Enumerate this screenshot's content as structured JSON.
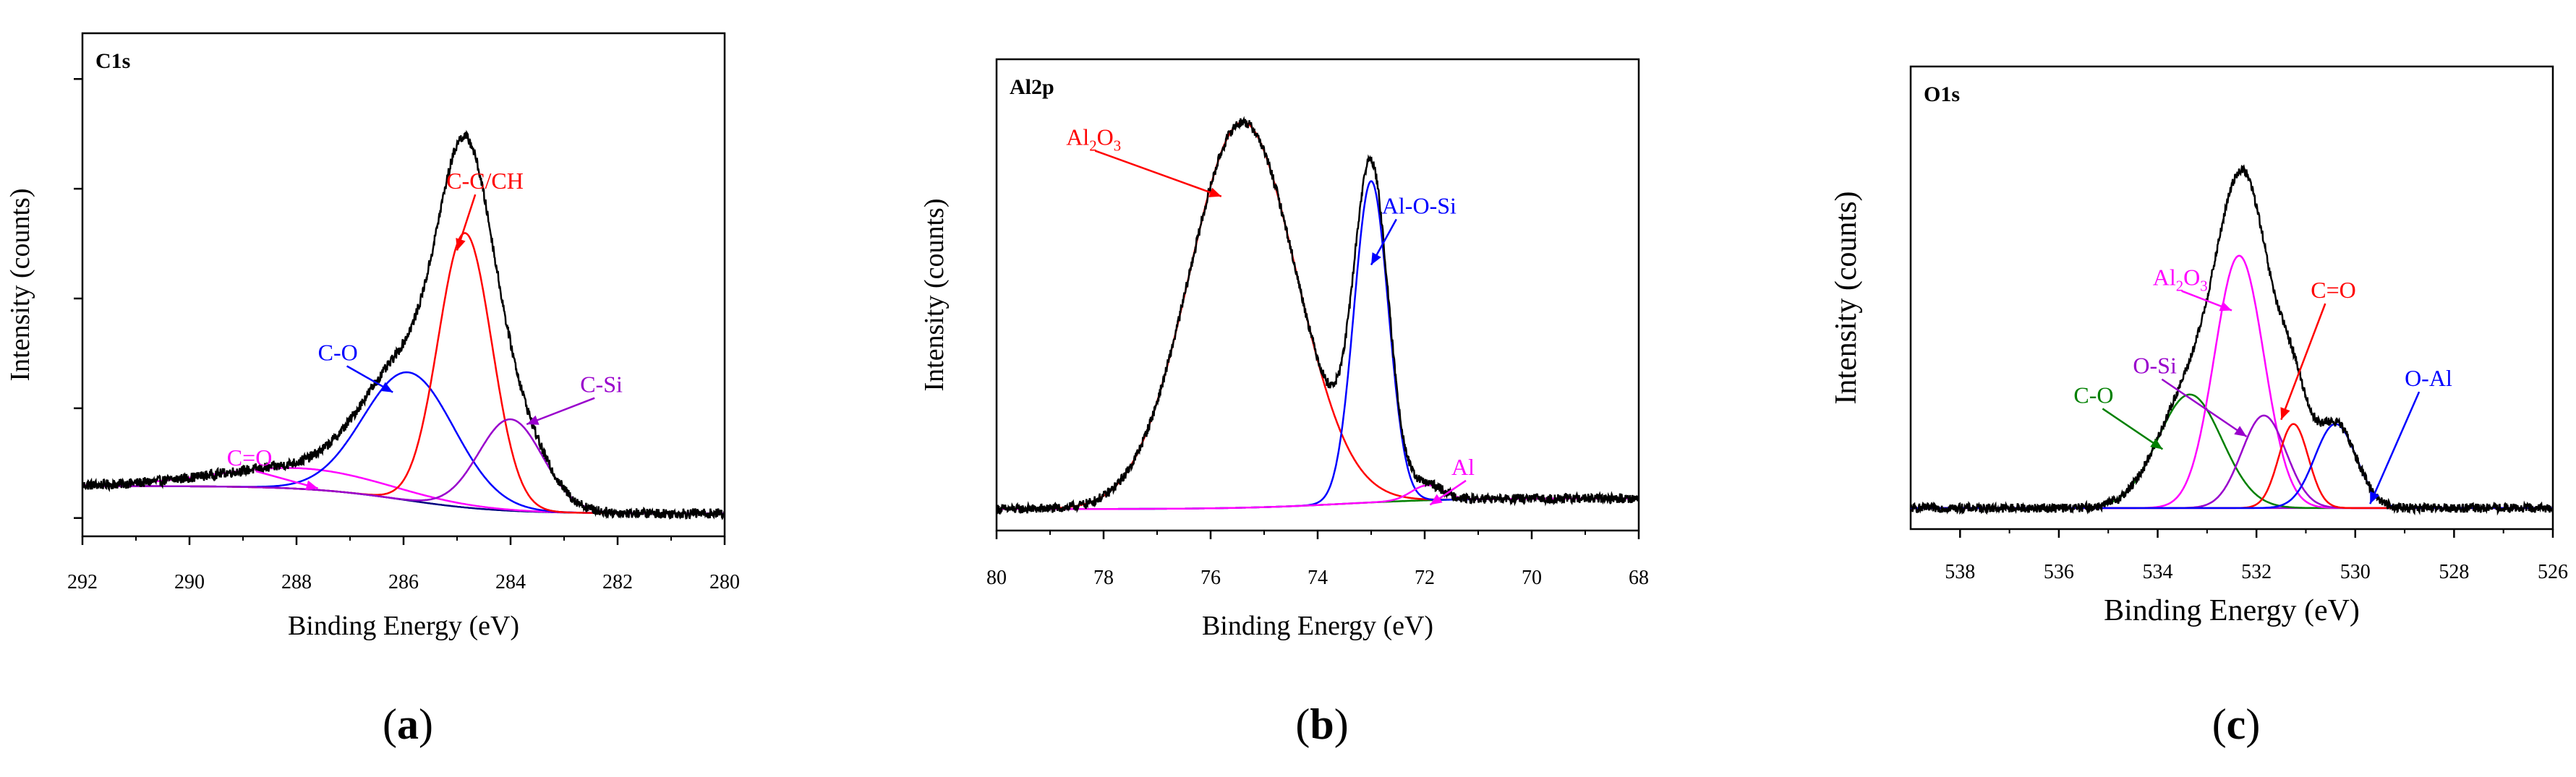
{
  "chart_data": [
    {
      "id": "a",
      "type": "line",
      "panel_label": "(a)",
      "panel_letter": "a",
      "title": "C1s",
      "xlabel": "Binding Energy (eV)",
      "ylabel": "Intensity (counts)",
      "xlim": [
        292,
        280
      ],
      "ylim": [
        0,
        1.1
      ],
      "xticks": [
        292,
        290,
        288,
        286,
        284,
        282,
        280
      ],
      "xtick_labels": [
        "292",
        "290",
        "288",
        "286",
        "284",
        "282",
        "280"
      ],
      "background": {
        "c0": 0.06,
        "c1": 0.0,
        "center": 286.0,
        "width": 0.9
      },
      "peaks": [
        {
          "name": "C=O",
          "label": "C=O",
          "center": 287.9,
          "height": 0.045,
          "width": 1.6,
          "color": "#ff00ff"
        },
        {
          "name": "C-O",
          "label": "C-O",
          "center": 285.9,
          "height": 0.28,
          "width": 0.85,
          "color": "#0000ff"
        },
        {
          "name": "C-C/CH",
          "label": "C-C/CH",
          "center": 284.85,
          "height": 0.6,
          "width": 0.5,
          "color": "#ff0000"
        },
        {
          "name": "C-Si",
          "label": "C-Si",
          "center": 284.0,
          "height": 0.2,
          "width": 0.6,
          "color": "#9900cc"
        }
      ],
      "annotations": [
        {
          "text": "C=O",
          "color": "#ff00ff",
          "label_xy": [
            289.3,
            0.155
          ],
          "arrow_to": [
            287.6,
            0.105
          ]
        },
        {
          "text": "C-O",
          "color": "#0000ff",
          "label_xy": [
            287.6,
            0.385
          ],
          "arrow_to": [
            286.2,
            0.315
          ]
        },
        {
          "text": "C-C/CH",
          "color": "#ff0000",
          "label_xy": [
            285.2,
            0.76
          ],
          "arrow_to": [
            285.0,
            0.625
          ]
        },
        {
          "text": "C-Si",
          "color": "#9900cc",
          "label_xy": [
            282.7,
            0.315
          ],
          "arrow_to": [
            283.7,
            0.245
          ]
        }
      ]
    },
    {
      "id": "b",
      "type": "line",
      "panel_label": "(b)",
      "panel_letter": "b",
      "title": "Al2p",
      "xlabel": "Binding Energy (eV)",
      "ylabel": "Intensity (counts)",
      "xlim": [
        80,
        68
      ],
      "ylim": [
        0,
        1.1
      ],
      "xticks": [
        80,
        78,
        76,
        74,
        72,
        70,
        68
      ],
      "xtick_labels": [
        "80",
        "78",
        "76",
        "74",
        "72",
        "70",
        "68"
      ],
      "background": {
        "c0": 0.0,
        "c1": 0.025,
        "center": 73.5,
        "width": 1.0
      },
      "peaks": [
        {
          "name": "Al2O3",
          "label": "Al2O3",
          "center": 75.4,
          "height": 0.9,
          "width": 1.0,
          "color": "#ff0000"
        },
        {
          "name": "Al-O-Si",
          "label": "Al-O-Si",
          "center": 73.0,
          "height": 0.75,
          "width": 0.32,
          "color": "#0000ff"
        },
        {
          "name": "Al",
          "label": "Al",
          "center": 71.95,
          "height": 0.035,
          "width": 0.3,
          "color": "#ff00ff"
        }
      ],
      "annotations": [
        {
          "text": "Al",
          "sub": "2",
          "text2": "O",
          "sub2": "3",
          "color": "#ff0000",
          "label_xy": [
            78.7,
            0.9
          ],
          "arrow_to": [
            75.8,
            0.78
          ]
        },
        {
          "text": "Al-O-Si",
          "color": "#0000ff",
          "label_xy": [
            72.8,
            0.74
          ],
          "arrow_to": [
            73.0,
            0.62
          ]
        },
        {
          "text": "Al",
          "color": "#ff00ff",
          "label_xy": [
            71.5,
            0.13
          ],
          "arrow_to": [
            71.9,
            0.06
          ]
        }
      ]
    },
    {
      "id": "c",
      "type": "line",
      "panel_label": "(c)",
      "panel_letter": "c",
      "title": "O1s",
      "xlabel": "Binding Energy (eV)",
      "ylabel": "Intensity (counts)",
      "xlim": [
        539,
        526
      ],
      "ylim": [
        0,
        1.1
      ],
      "xticks": [
        538,
        536,
        534,
        532,
        530,
        528,
        526
      ],
      "xtick_labels": [
        "538",
        "536",
        "534",
        "532",
        "530",
        "528",
        "526"
      ],
      "background": {
        "c0": 0.0,
        "c1": 0.0,
        "center": 532.0,
        "width": 1.0
      },
      "peaks": [
        {
          "name": "C-O",
          "label": "C-O",
          "center": 533.35,
          "height": 0.27,
          "width": 0.65,
          "color": "#008000"
        },
        {
          "name": "Al2O3",
          "label": "Al2O3",
          "center": 532.35,
          "height": 0.6,
          "width": 0.5,
          "color": "#ff00ff"
        },
        {
          "name": "O-Si",
          "label": "O-Si",
          "center": 531.85,
          "height": 0.22,
          "width": 0.45,
          "color": "#9900cc"
        },
        {
          "name": "C=O",
          "label": "C=O",
          "center": 531.25,
          "height": 0.2,
          "width": 0.3,
          "color": "#ff0000"
        },
        {
          "name": "O-Al",
          "label": "O-Al",
          "center": 530.4,
          "height": 0.2,
          "width": 0.42,
          "color": "#0000ff"
        }
      ],
      "annotations": [
        {
          "text": "C-O",
          "color": "#008000",
          "label_xy": [
            535.7,
            0.3
          ],
          "arrow_to": [
            533.9,
            0.19
          ]
        },
        {
          "text": "Al",
          "sub": "2",
          "text2": "O",
          "sub2": "3",
          "color": "#ff00ff",
          "label_xy": [
            534.1,
            0.58
          ],
          "arrow_to": [
            532.5,
            0.52
          ]
        },
        {
          "text": "O-Si",
          "color": "#9900cc",
          "label_xy": [
            534.5,
            0.37
          ],
          "arrow_to": [
            532.2,
            0.22
          ]
        },
        {
          "text": "C=O",
          "color": "#ff0000",
          "label_xy": [
            530.9,
            0.55
          ],
          "arrow_to": [
            531.5,
            0.26
          ]
        },
        {
          "text": "O-Al",
          "color": "#0000ff",
          "label_xy": [
            529.0,
            0.34
          ],
          "arrow_to": [
            529.7,
            0.06
          ]
        }
      ]
    }
  ]
}
